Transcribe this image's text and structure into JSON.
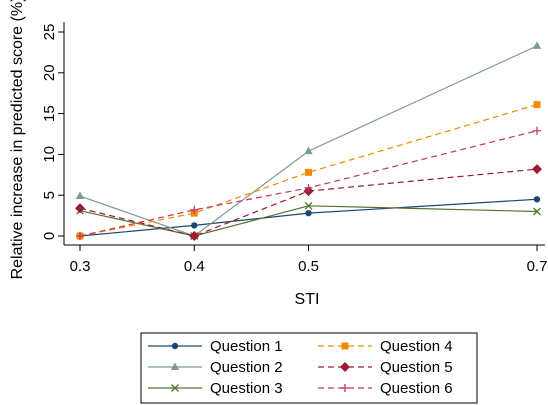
{
  "chart_data": {
    "type": "line",
    "xlabel": "STI",
    "ylabel": "Relative increase in predicted score (%)",
    "x": [
      0.3,
      0.4,
      0.5,
      0.7
    ],
    "xticks": [
      "0.3",
      "0.4",
      "0.5",
      "0.7"
    ],
    "yticks": [
      "0",
      "5",
      "10",
      "15",
      "20",
      "25"
    ],
    "xlim": [
      0.3,
      0.7
    ],
    "ylim": [
      0,
      25
    ],
    "grid": false,
    "legend_position": "bottom",
    "series": [
      {
        "name": "Question 1",
        "values": [
          0,
          1.3,
          2.8,
          4.5
        ],
        "color": "#1a476f",
        "marker": "circle",
        "dash": "solid"
      },
      {
        "name": "Question 2",
        "values": [
          4.9,
          0,
          10.4,
          23.3
        ],
        "color": "#7e9a90",
        "marker": "triangle",
        "dash": "solid"
      },
      {
        "name": "Question 3",
        "values": [
          3.1,
          0,
          3.7,
          3.0
        ],
        "color": "#55752f",
        "marker": "x",
        "dash": "solid"
      },
      {
        "name": "Question 4",
        "values": [
          0,
          2.8,
          7.8,
          16.1
        ],
        "color": "#f28a00",
        "marker": "square",
        "dash": "dashed"
      },
      {
        "name": "Question 5",
        "values": [
          3.4,
          0,
          5.5,
          8.2
        ],
        "color": "#9b1b30",
        "marker": "diamond",
        "dash": "dashed"
      },
      {
        "name": "Question 6",
        "values": [
          0,
          3.2,
          5.9,
          12.9
        ],
        "color": "#c4375e",
        "marker": "plus",
        "dash": "dashed"
      }
    ]
  }
}
